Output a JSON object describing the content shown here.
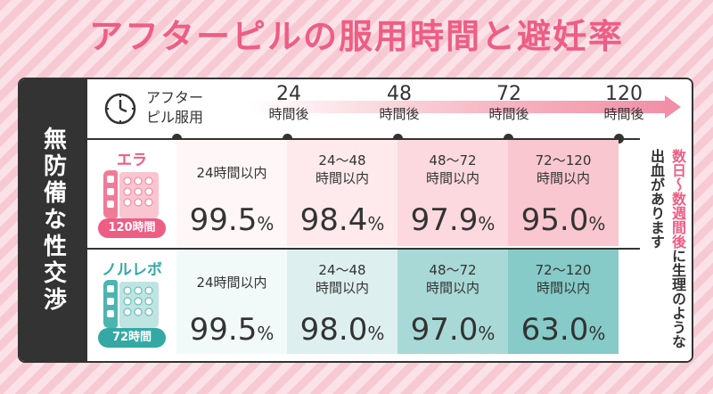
{
  "title": "アフターピルの服用時間と避妊率",
  "side_label": "無防備な性交渉",
  "header": {
    "label_line1": "アフター",
    "label_line2": "ピル服用",
    "ticks": [
      {
        "num": "24",
        "unit": "時間後"
      },
      {
        "num": "48",
        "unit": "時間後"
      },
      {
        "num": "72",
        "unit": "時間後"
      },
      {
        "num": "120",
        "unit": "時間後"
      }
    ]
  },
  "rows": [
    {
      "name": "エラ",
      "badge": "120時間",
      "accent": "#ee5d84",
      "cells": [
        {
          "line1": "24時間以内",
          "line2": "",
          "value": "99.5",
          "unit": "%"
        },
        {
          "line1": "24〜48",
          "line2": "時間以内",
          "value": "98.4",
          "unit": "%"
        },
        {
          "line1": "48〜72",
          "line2": "時間以内",
          "value": "97.9",
          "unit": "%"
        },
        {
          "line1": "72〜120",
          "line2": "時間以内",
          "value": "95.0",
          "unit": "%"
        }
      ]
    },
    {
      "name": "ノルレボ",
      "badge": "72時間",
      "accent": "#34a9a4",
      "cells": [
        {
          "line1": "24時間以内",
          "line2": "",
          "value": "99.5",
          "unit": "%"
        },
        {
          "line1": "24〜48",
          "line2": "時間以内",
          "value": "98.0",
          "unit": "%"
        },
        {
          "line1": "48〜72",
          "line2": "時間以内",
          "value": "97.0",
          "unit": "%"
        },
        {
          "line1": "72〜120",
          "line2": "時間以内",
          "value": "63.0",
          "unit": "%"
        }
      ]
    }
  ],
  "note": {
    "highlight": "数日〜数週間後",
    "rest": "に生理のような出血があります"
  }
}
